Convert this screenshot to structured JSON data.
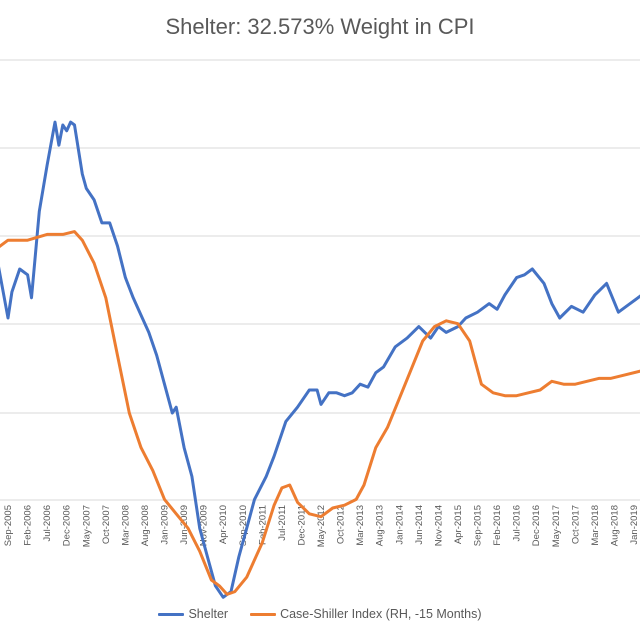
{
  "chart_data": {
    "type": "line",
    "title": "Shelter: 32.573% Weight in CPI",
    "grid": true,
    "legend_position": "bottom",
    "x_tick_labels": [
      "Sep-2005",
      "Feb-2006",
      "Jul-2006",
      "Dec-2006",
      "May-2007",
      "Oct-2007",
      "Mar-2008",
      "Aug-2008",
      "Jan-2009",
      "Jun-2009",
      "Nov-2009",
      "Apr-2010",
      "Sep-2010",
      "Feb-2011",
      "Jul-2011",
      "Dec-2011",
      "May-2012",
      "Oct-2012",
      "Mar-2013",
      "Aug-2013",
      "Jan-2014",
      "Jun-2014",
      "Nov-2014",
      "Apr-2015",
      "Sep-2015",
      "Feb-2016",
      "Jul-2016",
      "Dec-2016",
      "May-2017",
      "Oct-2017",
      "Mar-2018",
      "Aug-2018",
      "Jan-2019"
    ],
    "series": [
      {
        "name": "Shelter",
        "color": "#4472C4",
        "points": [
          [
            "2005-06",
            55
          ],
          [
            "2005-09",
            33
          ],
          [
            "2005-10",
            42
          ],
          [
            "2005-12",
            50
          ],
          [
            "2006-02",
            48
          ],
          [
            "2006-03",
            40
          ],
          [
            "2006-05",
            70
          ],
          [
            "2006-07",
            86
          ],
          [
            "2006-09",
            101
          ],
          [
            "2006-10",
            93
          ],
          [
            "2006-11",
            100
          ],
          [
            "2006-12",
            98
          ],
          [
            "2007-01",
            101
          ],
          [
            "2007-02",
            100
          ],
          [
            "2007-04",
            83
          ],
          [
            "2007-05",
            78
          ],
          [
            "2007-07",
            74
          ],
          [
            "2007-09",
            66
          ],
          [
            "2007-11",
            66
          ],
          [
            "2008-01",
            58
          ],
          [
            "2008-03",
            47
          ],
          [
            "2008-05",
            40
          ],
          [
            "2008-07",
            34
          ],
          [
            "2008-09",
            28
          ],
          [
            "2008-11",
            20
          ],
          [
            "2009-01",
            10
          ],
          [
            "2009-03",
            0
          ],
          [
            "2009-04",
            2
          ],
          [
            "2009-06",
            -12
          ],
          [
            "2009-08",
            -22
          ],
          [
            "2009-10",
            -40
          ],
          [
            "2009-12",
            -50
          ],
          [
            "2010-02",
            -60
          ],
          [
            "2010-04",
            -64
          ],
          [
            "2010-06",
            -62
          ],
          [
            "2010-08",
            -50
          ],
          [
            "2010-10",
            -40
          ],
          [
            "2010-12",
            -30
          ],
          [
            "2011-03",
            -22
          ],
          [
            "2011-05",
            -15
          ],
          [
            "2011-08",
            -3
          ],
          [
            "2011-11",
            2
          ],
          [
            "2012-02",
            8
          ],
          [
            "2012-04",
            8
          ],
          [
            "2012-05",
            3
          ],
          [
            "2012-07",
            7
          ],
          [
            "2012-09",
            7
          ],
          [
            "2012-11",
            6
          ],
          [
            "2013-01",
            7
          ],
          [
            "2013-03",
            10
          ],
          [
            "2013-05",
            9
          ],
          [
            "2013-07",
            14
          ],
          [
            "2013-09",
            16
          ],
          [
            "2013-12",
            23
          ],
          [
            "2014-03",
            26
          ],
          [
            "2014-06",
            30
          ],
          [
            "2014-09",
            26
          ],
          [
            "2014-11",
            30
          ],
          [
            "2015-01",
            28
          ],
          [
            "2015-04",
            30
          ],
          [
            "2015-06",
            33
          ],
          [
            "2015-09",
            35
          ],
          [
            "2015-12",
            38
          ],
          [
            "2016-02",
            36
          ],
          [
            "2016-04",
            41
          ],
          [
            "2016-07",
            47
          ],
          [
            "2016-09",
            48
          ],
          [
            "2016-11",
            50
          ],
          [
            "2017-02",
            45
          ],
          [
            "2017-04",
            38
          ],
          [
            "2017-06",
            33
          ],
          [
            "2017-09",
            37
          ],
          [
            "2017-12",
            35
          ],
          [
            "2018-03",
            41
          ],
          [
            "2018-06",
            45
          ],
          [
            "2018-09",
            35
          ],
          [
            "2018-12",
            38
          ],
          [
            "2019-04",
            42
          ]
        ]
      },
      {
        "name": "Case-Shiller Index (RH, -15 Months)",
        "color": "#ED7D31",
        "points": [
          [
            "2005-06",
            57
          ],
          [
            "2005-09",
            60
          ],
          [
            "2006-02",
            60
          ],
          [
            "2006-07",
            62
          ],
          [
            "2006-11",
            62
          ],
          [
            "2007-02",
            63
          ],
          [
            "2007-04",
            60
          ],
          [
            "2007-07",
            52
          ],
          [
            "2007-10",
            40
          ],
          [
            "2008-01",
            20
          ],
          [
            "2008-04",
            0
          ],
          [
            "2008-07",
            -12
          ],
          [
            "2008-10",
            -20
          ],
          [
            "2009-01",
            -30
          ],
          [
            "2009-04",
            -35
          ],
          [
            "2009-07",
            -40
          ],
          [
            "2009-10",
            -48
          ],
          [
            "2010-01",
            -58
          ],
          [
            "2010-03",
            -60
          ],
          [
            "2010-05",
            -63
          ],
          [
            "2010-07",
            -62
          ],
          [
            "2010-10",
            -57
          ],
          [
            "2011-02",
            -45
          ],
          [
            "2011-05",
            -32
          ],
          [
            "2011-07",
            -26
          ],
          [
            "2011-09",
            -25
          ],
          [
            "2011-11",
            -31
          ],
          [
            "2012-02",
            -35
          ],
          [
            "2012-05",
            -36
          ],
          [
            "2012-08",
            -33
          ],
          [
            "2012-11",
            -32
          ],
          [
            "2013-02",
            -30
          ],
          [
            "2013-04",
            -25
          ],
          [
            "2013-07",
            -12
          ],
          [
            "2013-10",
            -5
          ],
          [
            "2014-01",
            5
          ],
          [
            "2014-04",
            15
          ],
          [
            "2014-07",
            25
          ],
          [
            "2014-10",
            30
          ],
          [
            "2015-01",
            32
          ],
          [
            "2015-04",
            31
          ],
          [
            "2015-07",
            25
          ],
          [
            "2015-10",
            10
          ],
          [
            "2016-01",
            7
          ],
          [
            "2016-04",
            6
          ],
          [
            "2016-07",
            6
          ],
          [
            "2016-10",
            7
          ],
          [
            "2017-01",
            8
          ],
          [
            "2017-04",
            11
          ],
          [
            "2017-07",
            10
          ],
          [
            "2017-10",
            10
          ],
          [
            "2018-01",
            11
          ],
          [
            "2018-04",
            12
          ],
          [
            "2018-07",
            12
          ],
          [
            "2018-10",
            13
          ],
          [
            "2019-04",
            15
          ]
        ]
      }
    ]
  }
}
